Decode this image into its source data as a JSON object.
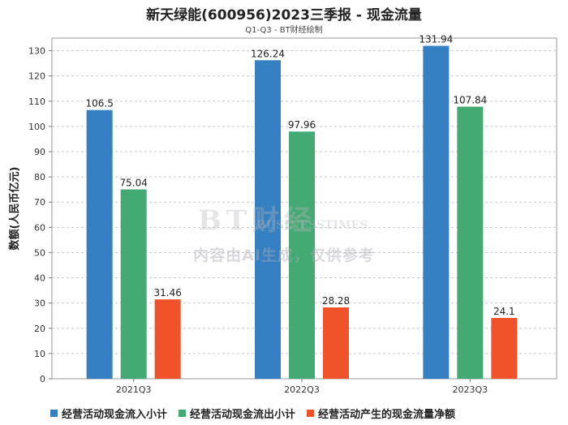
{
  "chart_data": {
    "type": "bar",
    "title": "新天绿能(600956)2023三季报 - 现金流量",
    "subtitle": "Q1-Q3 - BT财经绘制",
    "ylabel": "数额(人民币亿元)",
    "xlabel": "",
    "ylim": [
      0,
      135
    ],
    "yticks": [
      0,
      10,
      20,
      30,
      40,
      50,
      60,
      70,
      80,
      90,
      100,
      110,
      120,
      130
    ],
    "categories": [
      "2021Q3",
      "2022Q3",
      "2023Q3"
    ],
    "series": [
      {
        "name": "经营活动现金流入小计",
        "color": "#3480c2",
        "values": [
          106.5,
          126.24,
          131.94
        ],
        "labels": [
          "106.5",
          "126.24",
          "131.94"
        ]
      },
      {
        "name": "经营活动现金流出小计",
        "color": "#44aa74",
        "values": [
          75.04,
          97.96,
          107.84
        ],
        "labels": [
          "75.04",
          "97.96",
          "107.84"
        ]
      },
      {
        "name": "经营活动产生的现金流量净额",
        "color": "#f0532a",
        "values": [
          31.46,
          28.28,
          24.1
        ],
        "labels": [
          "31.46",
          "28.28",
          "24.1"
        ]
      }
    ],
    "grid": true,
    "legend_position": "bottom-left"
  },
  "watermark": {
    "logo_text": "BT财经",
    "logo_sub": "BUSINESSTIMES",
    "note": "内容由AI生成，仅供参考"
  }
}
